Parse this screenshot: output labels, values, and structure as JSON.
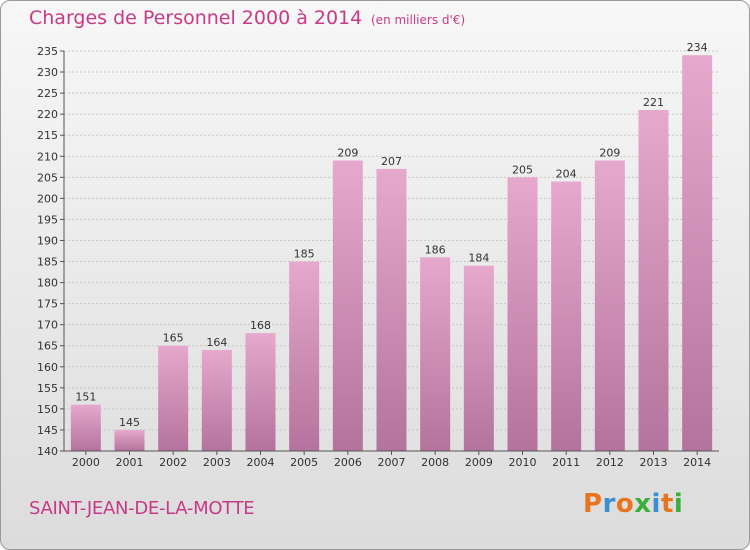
{
  "header": {
    "title": "Charges de Personnel 2000 à 2014",
    "subtitle": "(en milliers d'€)"
  },
  "footer": {
    "commune": "SAINT-JEAN-DE-LA-MOTTE",
    "logo": "Proxiti"
  },
  "colors": {
    "title": "#c83a87",
    "bar_top": "#e6a8cd",
    "bar_bottom": "#b4739c",
    "logo_letters": [
      "#e8741e",
      "#3a8fd0",
      "#e8741e",
      "#3cae3c",
      "#3a8fd0",
      "#e8741e",
      "#3cae3c"
    ]
  },
  "chart_data": {
    "type": "bar",
    "title": "Charges de Personnel 2000 à 2014",
    "subtitle": "(en milliers d'€)",
    "categories": [
      "2000",
      "2001",
      "2002",
      "2003",
      "2004",
      "2005",
      "2006",
      "2007",
      "2008",
      "2009",
      "2010",
      "2011",
      "2012",
      "2013",
      "2014"
    ],
    "values": [
      151,
      145,
      165,
      164,
      168,
      185,
      209,
      207,
      186,
      184,
      205,
      204,
      209,
      221,
      234
    ],
    "ylim": [
      140,
      235
    ],
    "yticks": [
      140,
      145,
      150,
      155,
      160,
      165,
      170,
      175,
      180,
      185,
      190,
      195,
      200,
      205,
      210,
      215,
      220,
      225,
      230,
      235
    ],
    "grid": true,
    "legend": "none"
  }
}
